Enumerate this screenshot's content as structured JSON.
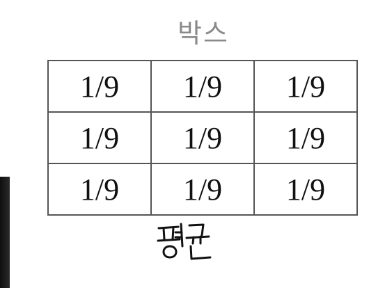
{
  "title": "박스",
  "grid": {
    "rows": [
      [
        "1/9",
        "1/9",
        "1/9"
      ],
      [
        "1/9",
        "1/9",
        "1/9"
      ],
      [
        "1/9",
        "1/9",
        "1/9"
      ]
    ]
  },
  "caption": {
    "text": "평균",
    "style": "handwritten"
  },
  "colors": {
    "title": "#8a8a8a",
    "grid_border": "#555555",
    "cell_text": "#111111",
    "caption_ink": "#111111"
  }
}
